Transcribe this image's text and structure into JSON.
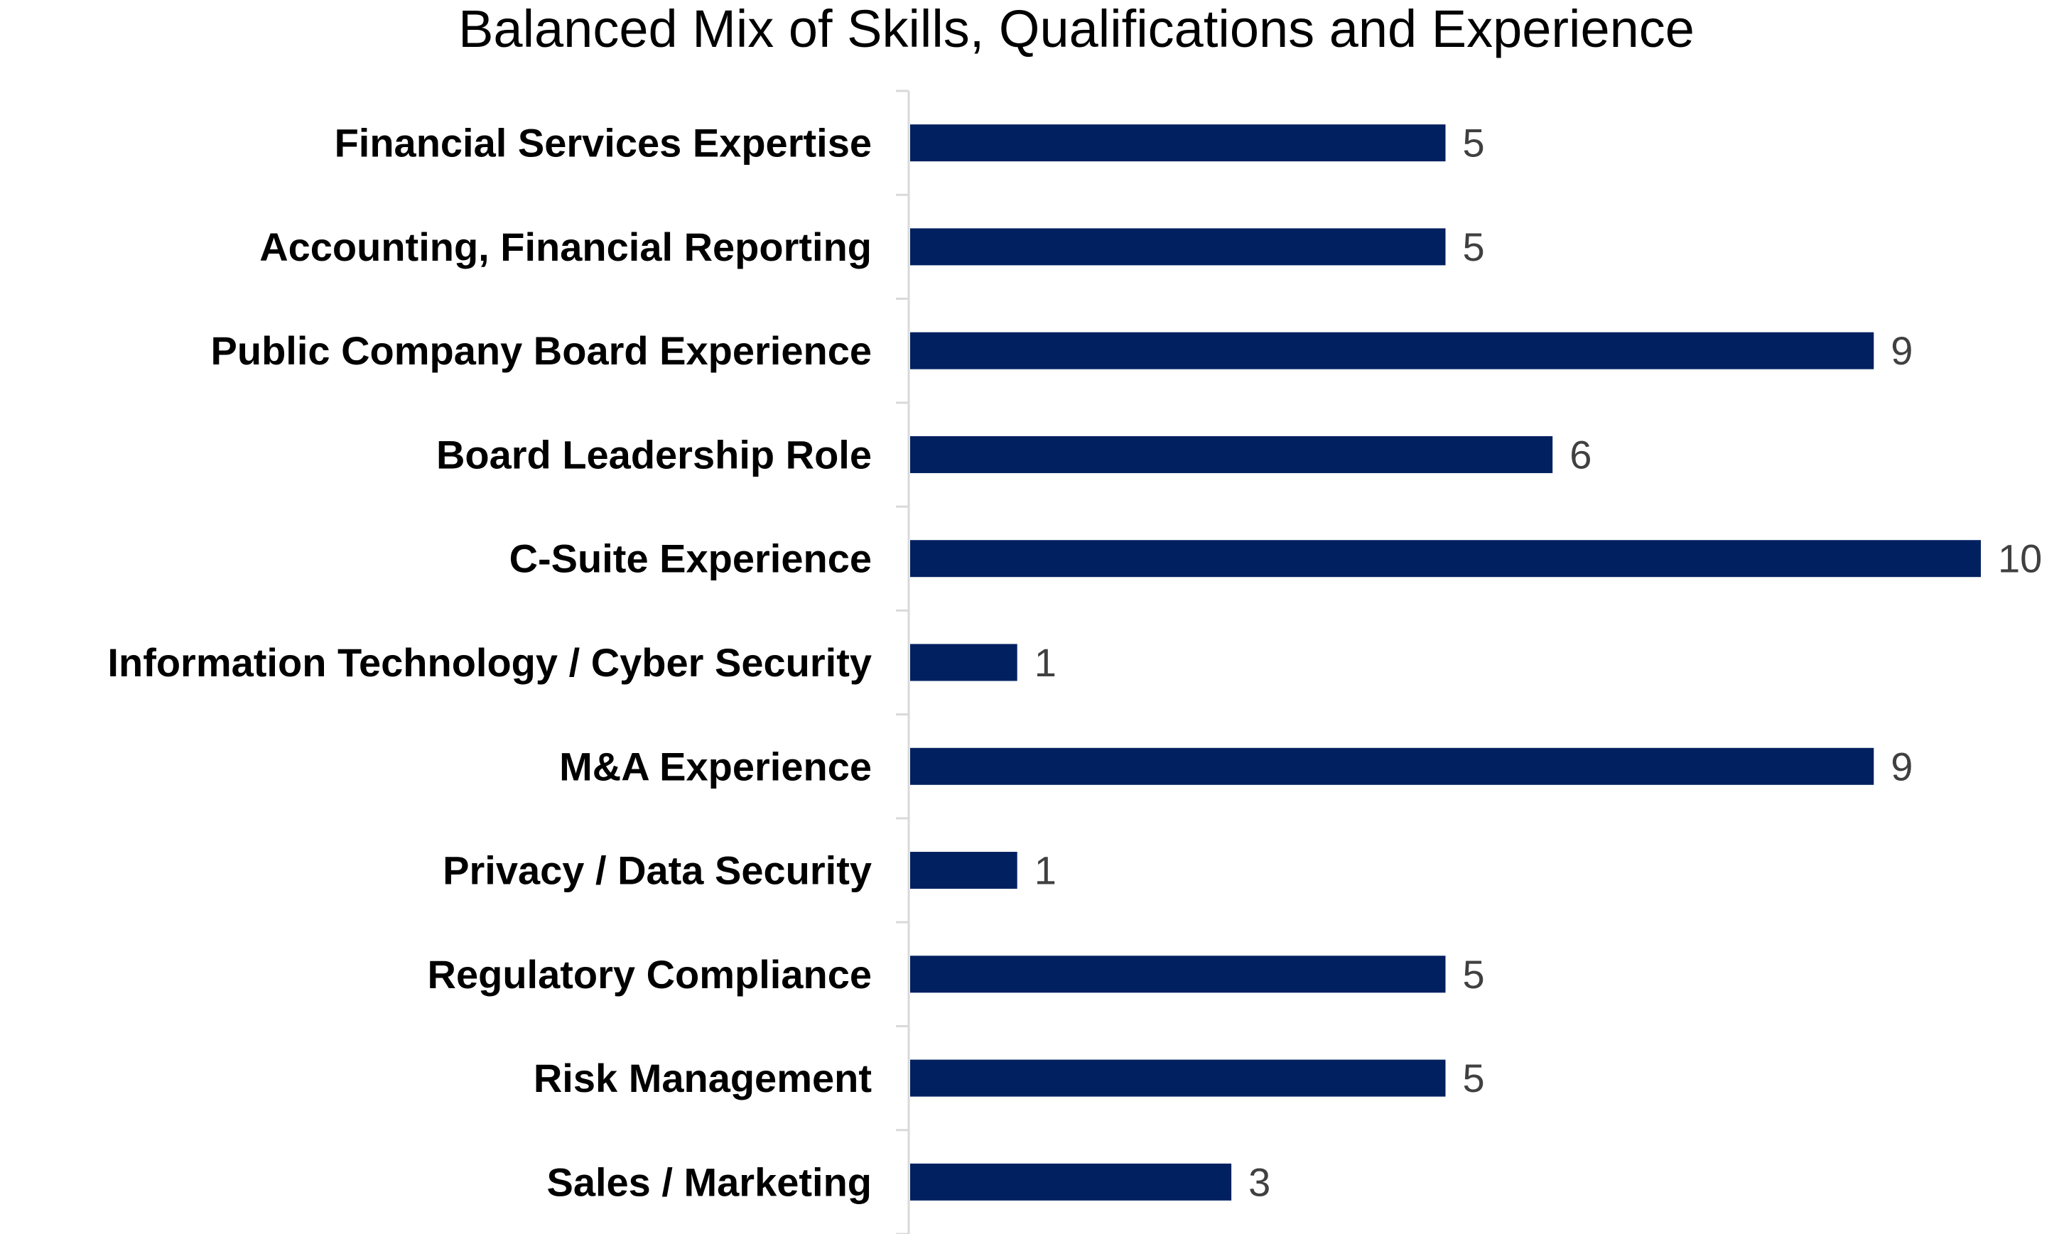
{
  "chart_data": {
    "type": "bar",
    "orientation": "horizontal",
    "title": "Balanced Mix of Skills, Qualifications and Experience",
    "xlabel": "",
    "ylabel": "",
    "categories": [
      "Financial Services Expertise",
      "Accounting, Financial Reporting",
      "Public Company Board Experience",
      "Board Leadership Role",
      "C-Suite Experience",
      "Information Technology / Cyber Security",
      "M&A Experience",
      "Privacy / Data Security",
      "Regulatory Compliance",
      "Risk Management",
      "Sales / Marketing"
    ],
    "values": [
      5,
      5,
      9,
      6,
      10,
      1,
      9,
      1,
      5,
      5,
      3
    ],
    "xlim": [
      0,
      10
    ],
    "grid": false,
    "legend": "none",
    "data_labels": true,
    "bar_color": "#002060",
    "axis_color": "#d9d9d9",
    "value_label_color": "#404040"
  }
}
